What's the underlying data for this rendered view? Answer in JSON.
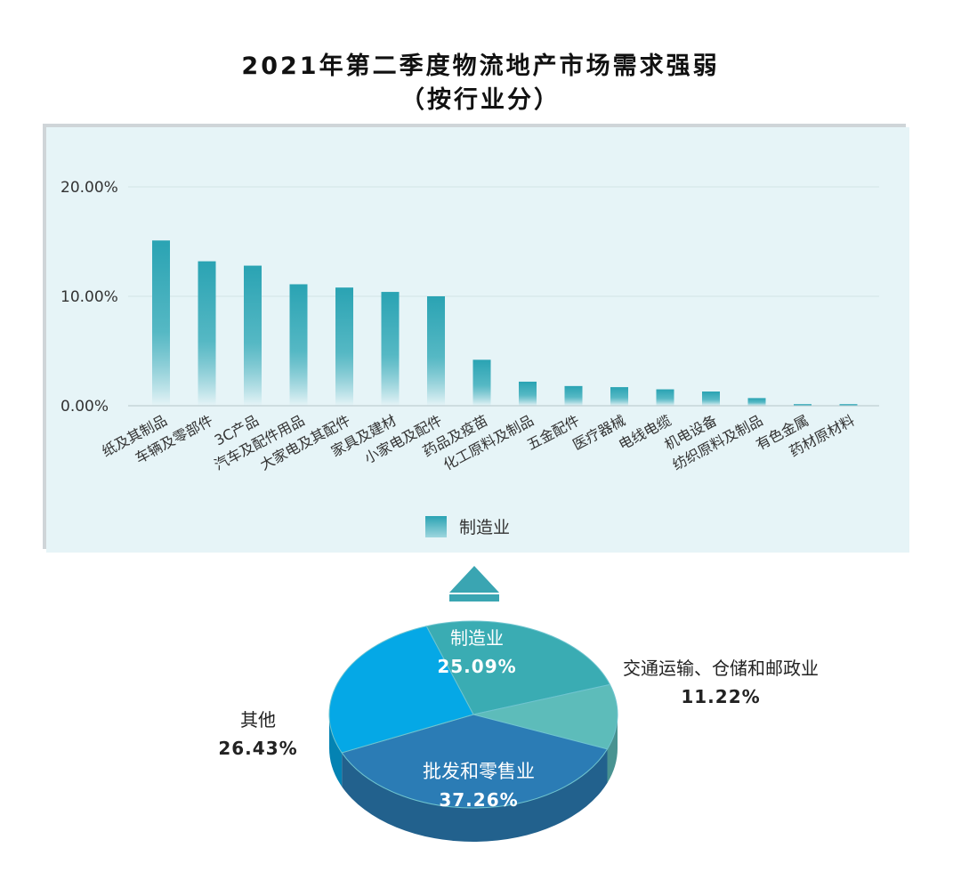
{
  "title": {
    "line1": "2021年第二季度物流地产市场需求强弱",
    "line2": "（按行业分）"
  },
  "chart_data": [
    {
      "type": "bar",
      "categories": [
        "纸及其制品",
        "车辆及零部件",
        "3C产品",
        "汽车及配件用品",
        "大家电及其配件",
        "家具及建材",
        "小家电及配件",
        "药品及疫苗",
        "化工原料及制品",
        "五金配件",
        "医疗器械",
        "电线电缆",
        "机电设备",
        "纺织原料及制品",
        "有色金属",
        "药材原材料"
      ],
      "series": [
        {
          "name": "制造业",
          "values": [
            15.1,
            13.2,
            12.8,
            11.1,
            10.8,
            10.4,
            10.0,
            4.2,
            2.2,
            1.8,
            1.7,
            1.5,
            1.3,
            0.7,
            0.15,
            0.15
          ]
        }
      ],
      "ylim": [
        0,
        20
      ],
      "yticks": [
        "0.00%",
        "10.00%",
        "20.00%"
      ],
      "ytick_values": [
        0,
        10,
        20
      ],
      "grid": true,
      "legend": "bottom",
      "colors": {
        "bar": "#2aa3b3",
        "grid": "#d3e3e6"
      }
    },
    {
      "type": "pie",
      "slices": [
        {
          "label": "制造业",
          "value": 25.09,
          "display": "25.09%",
          "color": "#3aacb3"
        },
        {
          "label": "交通运输、仓储和邮政业",
          "value": 11.22,
          "display": "11.22%",
          "color": "#5dbcba"
        },
        {
          "label": "批发和零售业",
          "value": 37.26,
          "display": "37.26%",
          "color": "#2b7cb5"
        },
        {
          "label": "其他",
          "value": 26.43,
          "display": "26.43%",
          "color": "#05a8e6"
        }
      ]
    }
  ],
  "colors": {
    "arrow": "#3aa5b2",
    "panel": "#e6f4f7"
  }
}
